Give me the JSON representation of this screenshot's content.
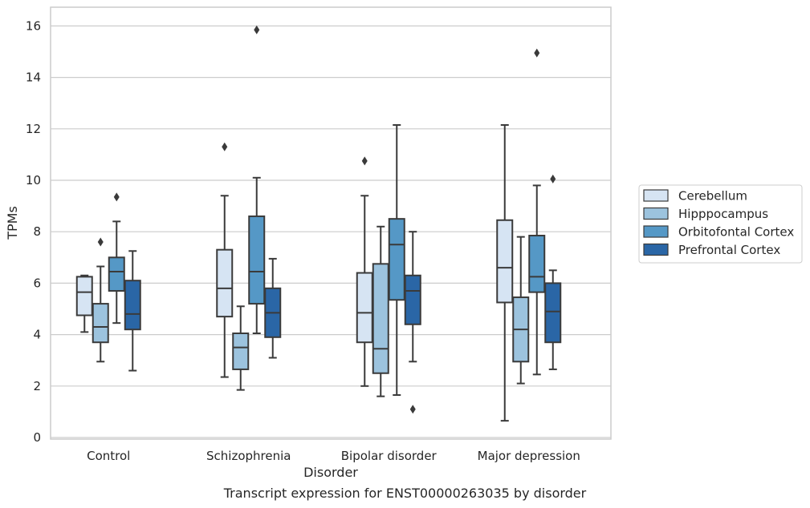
{
  "chart_data": {
    "type": "box",
    "xlabel": "Disorder",
    "ylabel": "TPMs",
    "ylim": [
      0,
      16.6
    ],
    "yticks": [
      0,
      2,
      4,
      6,
      8,
      10,
      12,
      14,
      16
    ],
    "grid": "horizontal",
    "legend_position": "right",
    "categories": [
      "Control",
      "Schizophrenia",
      "Bipolar disorder",
      "Major depression"
    ],
    "series": [
      {
        "name": "Cerebellum",
        "color": "#d6e4f3",
        "boxes": [
          {
            "whislo": 4.1,
            "q1": 4.75,
            "med": 5.65,
            "q3": 6.25,
            "whishi": 6.3,
            "fliers": []
          },
          {
            "whislo": 2.35,
            "q1": 4.7,
            "med": 5.8,
            "q3": 7.3,
            "whishi": 9.4,
            "fliers": [
              11.3
            ]
          },
          {
            "whislo": 2.0,
            "q1": 3.7,
            "med": 4.85,
            "q3": 6.4,
            "whishi": 9.4,
            "fliers": [
              10.75
            ]
          },
          {
            "whislo": 0.65,
            "q1": 5.25,
            "med": 6.6,
            "q3": 8.45,
            "whishi": 12.15,
            "fliers": []
          }
        ]
      },
      {
        "name": "Hipppocampus",
        "color": "#9cc3de",
        "boxes": [
          {
            "whislo": 2.95,
            "q1": 3.7,
            "med": 4.3,
            "q3": 5.2,
            "whishi": 6.65,
            "fliers": [
              7.6
            ]
          },
          {
            "whislo": 1.85,
            "q1": 2.65,
            "med": 3.5,
            "q3": 4.05,
            "whishi": 5.1,
            "fliers": []
          },
          {
            "whislo": 1.6,
            "q1": 2.5,
            "med": 3.45,
            "q3": 6.75,
            "whishi": 8.2,
            "fliers": []
          },
          {
            "whislo": 2.1,
            "q1": 2.95,
            "med": 4.2,
            "q3": 5.45,
            "whishi": 7.8,
            "fliers": []
          }
        ]
      },
      {
        "name": "Orbitofontal Cortex",
        "color": "#5598c6",
        "boxes": [
          {
            "whislo": 4.45,
            "q1": 5.7,
            "med": 6.45,
            "q3": 7.0,
            "whishi": 8.4,
            "fliers": [
              9.35
            ]
          },
          {
            "whislo": 4.05,
            "q1": 5.2,
            "med": 6.45,
            "q3": 8.6,
            "whishi": 10.1,
            "fliers": [
              15.85
            ]
          },
          {
            "whislo": 1.65,
            "q1": 5.35,
            "med": 7.5,
            "q3": 8.5,
            "whishi": 12.15,
            "fliers": []
          },
          {
            "whislo": 2.45,
            "q1": 5.65,
            "med": 6.25,
            "q3": 7.85,
            "whishi": 9.8,
            "fliers": [
              14.95
            ]
          }
        ]
      },
      {
        "name": "Prefrontal Cortex",
        "color": "#2a66a6",
        "boxes": [
          {
            "whislo": 2.6,
            "q1": 4.2,
            "med": 4.8,
            "q3": 6.1,
            "whishi": 7.25,
            "fliers": []
          },
          {
            "whislo": 3.1,
            "q1": 3.9,
            "med": 4.85,
            "q3": 5.8,
            "whishi": 6.95,
            "fliers": []
          },
          {
            "whislo": 2.95,
            "q1": 4.4,
            "med": 5.7,
            "q3": 6.3,
            "whishi": 8.0,
            "fliers": [
              1.1
            ]
          },
          {
            "whislo": 2.65,
            "q1": 3.7,
            "med": 4.9,
            "q3": 6.0,
            "whishi": 6.5,
            "fliers": [
              10.05
            ]
          }
        ]
      }
    ]
  },
  "caption": "Transcript expression for ENST00000263035 by disorder"
}
